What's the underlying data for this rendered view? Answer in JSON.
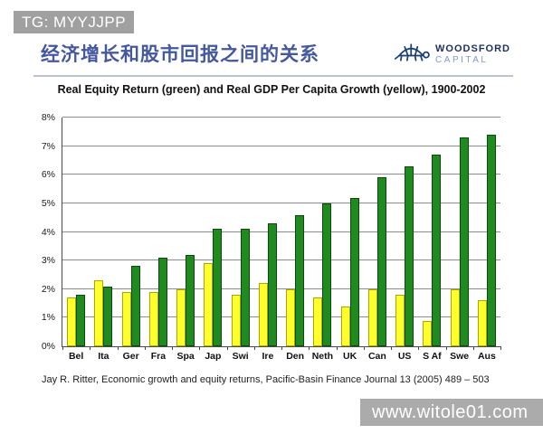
{
  "watermark_top": "TG: MYYJJPP",
  "watermark_bottom": "www.witole01.com",
  "slide": {
    "title": "经济增长和股市回报之间的关系",
    "logo": {
      "name": "WOODSFORD",
      "sub": "CAPITAL",
      "icon": "turtle-icon",
      "color_dark": "#1c2f5e",
      "color_light": "#7f9cc4"
    }
  },
  "chart_data": {
    "type": "bar",
    "title": "Real Equity Return (green) and Real GDP Per Capita Growth (yellow), 1900-2002",
    "categories": [
      "Bel",
      "Ita",
      "Ger",
      "Fra",
      "Spa",
      "Jap",
      "Swi",
      "Ire",
      "Den",
      "Neth",
      "UK",
      "Can",
      "US",
      "S Af",
      "Swe",
      "Aus"
    ],
    "series": [
      {
        "key": "gdp-growth",
        "name": "Real GDP Per Capita Growth",
        "color": "#ffff2b",
        "border": "#a8a800",
        "values": [
          1.7,
          2.3,
          1.9,
          1.9,
          2.0,
          2.9,
          1.8,
          2.2,
          2.0,
          1.7,
          1.4,
          2.0,
          1.8,
          0.9,
          2.0,
          1.6
        ]
      },
      {
        "key": "equity-return",
        "name": "Real Equity Return",
        "color": "#1f8a1f",
        "border": "#0b4a0b",
        "values": [
          1.8,
          2.1,
          2.8,
          3.1,
          3.2,
          4.1,
          4.1,
          4.3,
          4.6,
          5.0,
          5.2,
          5.9,
          6.3,
          6.7,
          7.3,
          7.4
        ]
      }
    ],
    "xlabel": "",
    "ylabel": "",
    "ylim": [
      0,
      8
    ],
    "yticks": [
      "0%",
      "1%",
      "2%",
      "3%",
      "4%",
      "5%",
      "6%",
      "7%",
      "8%"
    ],
    "grid": true,
    "legend_position": "none"
  },
  "footnote": "Jay R. Ritter, Economic growth and equity returns, Pacific-Basin Finance Journal 13 (2005) 489 – 503"
}
